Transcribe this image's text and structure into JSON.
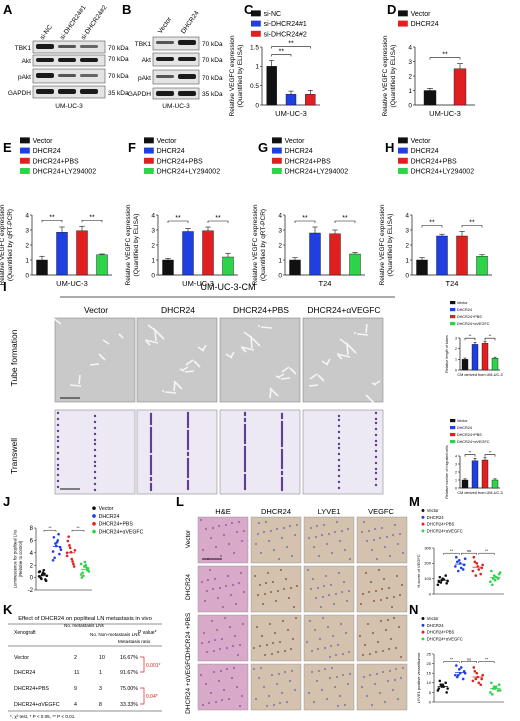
{
  "panels": {
    "A": {
      "letter": "A",
      "lanes": [
        "si-NC",
        "si-DHCR24#1",
        "si-DHCR24#2"
      ],
      "proteins": [
        "TBK1",
        "Akt",
        "pAkt",
        "GAPDH"
      ],
      "markers": [
        "70 kDa",
        "70 kDa",
        "70 kDa",
        "35 kDa"
      ],
      "cell_line": "UM-UC-3"
    },
    "B": {
      "letter": "B",
      "lanes": [
        "Vector",
        "DHCR24"
      ],
      "proteins": [
        "TBK1",
        "Akt",
        "pAkt",
        "GAPDH"
      ],
      "markers": [
        "70 kDa",
        "70 kDa",
        "70 kDa",
        "35 kDa"
      ],
      "cell_line": "UM-UC-3"
    },
    "I": {
      "letter": "I",
      "header": "UM-UC-3-CM",
      "columns": [
        "Vector",
        "DHCR24",
        "DHCR24+PBS",
        "DHCR24+αVEGFC"
      ],
      "rows": [
        "Tube formation",
        "Transwell"
      ]
    },
    "J": {
      "letter": "J"
    },
    "K": {
      "letter": "K",
      "title": "Effect of DHCR24 on popliteal LN metastasis in vivo",
      "headers": [
        "Xenograft",
        "No. metastasis LNs",
        "No. Non-metastasis LNs",
        "Metastasis ratio",
        "P value*"
      ],
      "rows": [
        [
          "Vector",
          "2",
          "10",
          "16.67%"
        ],
        [
          "DHCR24",
          "11",
          "1",
          "91.67%"
        ],
        [
          "DHCR24+PBS",
          "9",
          "3",
          "75.00%"
        ],
        [
          "DHCR24+αVEGFC",
          "4",
          "8",
          "33.33%"
        ]
      ],
      "pvalues": [
        "0.001*",
        "0.04*"
      ],
      "footnote": "*, χ² test, * P < 0.05, ** P < 0.01."
    },
    "L": {
      "letter": "L",
      "columns": [
        "H&E",
        "DHCR24",
        "LYVE1",
        "VEGFC"
      ],
      "rows": [
        "Vector",
        "DHCR24",
        "DHCR24 +PBS",
        "DHCR24 +αVEGFC"
      ]
    },
    "M": {
      "letter": "M"
    },
    "N": {
      "letter": "N"
    }
  },
  "colors": {
    "vector": "#111111",
    "dhcr24": "#1f3fe0",
    "pbs": "#e02020",
    "ly": "#2dd44a",
    "si1": "#1f3fe0",
    "si2": "#e02020",
    "tube_bg": "#c9c9c9",
    "transwell_bg": "#ece8f4",
    "he": "#d9a9c9",
    "ihc": "#d4c2ae"
  },
  "chart_data": [
    {
      "panel": "C",
      "type": "bar",
      "categories": [
        "si-NC",
        "si-DHCR24#1",
        "si-DHCR24#2"
      ],
      "values": [
        1.0,
        0.28,
        0.28
      ],
      "errors": [
        0.15,
        0.08,
        0.1
      ],
      "legend": [
        "si-NC",
        "si-DHCR24#1",
        "si-DHCR24#2"
      ],
      "ylabel": "Relative VEGFC expression (Quantified by ELISA)",
      "xlabel": "UM-UC-3",
      "ylim": [
        0,
        1.5
      ],
      "yticks": [
        0,
        0.5,
        1,
        1.5
      ],
      "sig": [
        {
          "from": 0,
          "to": 1,
          "label": "**"
        },
        {
          "from": 0,
          "to": 2,
          "label": "**"
        }
      ]
    },
    {
      "panel": "D",
      "type": "bar",
      "categories": [
        "Vector",
        "DHCR24"
      ],
      "values": [
        1.0,
        2.5
      ],
      "errors": [
        0.15,
        0.35
      ],
      "legend": [
        "Vector",
        "DHCR24"
      ],
      "ylabel": "Relative VEGFC expression (Quantified by ELISA)",
      "xlabel": "UM-UC-3",
      "ylim": [
        0,
        4
      ],
      "yticks": [
        0,
        1,
        2,
        3,
        4
      ],
      "sig": [
        {
          "from": 0,
          "to": 1,
          "label": "**"
        }
      ]
    },
    {
      "panel": "E",
      "type": "bar",
      "categories": [
        "Vector",
        "DHCR24",
        "DHCR24+PBS",
        "DHCR24+LY294002"
      ],
      "values": [
        1.0,
        2.85,
        2.95,
        1.35
      ],
      "errors": [
        0.25,
        0.35,
        0.3,
        0.05
      ],
      "legend": [
        "Vector",
        "DHCR24",
        "DHCR24+PBS",
        "DHCR24+LY294002"
      ],
      "ylabel": "Relative VEGFC expression (Quantified by qRT-PCR)",
      "xlabel": "UM-UC-3",
      "ylim": [
        0,
        4
      ],
      "yticks": [
        0,
        1,
        2,
        3,
        4
      ],
      "sig": [
        {
          "from": 0,
          "to": 1,
          "label": "**"
        },
        {
          "from": 2,
          "to": 3,
          "label": "**"
        }
      ]
    },
    {
      "panel": "F",
      "type": "bar",
      "categories": [
        "Vector",
        "DHCR24",
        "DHCR24+PBS",
        "DHCR24+LY294002"
      ],
      "values": [
        1.0,
        2.9,
        2.95,
        1.2
      ],
      "errors": [
        0.1,
        0.2,
        0.25,
        0.25
      ],
      "legend": [
        "Vector",
        "DHCR24",
        "DHCR24+PBS",
        "DHCR24+LY294002"
      ],
      "ylabel": "Relative VEGFC expression (Quantified by ELISA)",
      "xlabel": "UM-UC-3",
      "ylim": [
        0,
        4
      ],
      "yticks": [
        0,
        1,
        2,
        3,
        4
      ],
      "sig": [
        {
          "from": 0,
          "to": 1,
          "label": "**"
        },
        {
          "from": 2,
          "to": 3,
          "label": "**"
        }
      ]
    },
    {
      "panel": "G",
      "type": "bar",
      "categories": [
        "Vector",
        "DHCR24",
        "DHCR24+PBS",
        "DHCR24+LY294002"
      ],
      "values": [
        1.0,
        2.8,
        2.75,
        1.4
      ],
      "errors": [
        0.15,
        0.4,
        0.25,
        0.1
      ],
      "legend": [
        "Vector",
        "DHCR24",
        "DHCR24+PBS",
        "DHCR24+LY294002"
      ],
      "ylabel": "Relative VEGFC expression (Quantified by qRT-PCR)",
      "xlabel": "T24",
      "ylim": [
        0,
        4
      ],
      "yticks": [
        0,
        1,
        2,
        3,
        4
      ],
      "sig": [
        {
          "from": 0,
          "to": 1,
          "label": "**"
        },
        {
          "from": 2,
          "to": 3,
          "label": "**"
        }
      ]
    },
    {
      "panel": "H",
      "type": "bar",
      "categories": [
        "Vector",
        "DHCR24",
        "DHCR24+PBS",
        "DHCR24+LY294002"
      ],
      "values": [
        1.0,
        2.6,
        2.6,
        1.25
      ],
      "errors": [
        0.15,
        0.12,
        0.3,
        0.1
      ],
      "legend": [
        "Vector",
        "DHCR24",
        "DHCR24+PBS",
        "DHCR24+LY294002"
      ],
      "ylabel": "Relative VEGFC expression (Quantified by ELISA)",
      "xlabel": "T24",
      "ylim": [
        0,
        4
      ],
      "yticks": [
        0,
        1,
        2,
        3,
        4
      ],
      "sig": [
        {
          "from": 0,
          "to": 1,
          "label": "**"
        },
        {
          "from": 2,
          "to": 3,
          "label": "**"
        }
      ]
    },
    {
      "panel": "I-tube",
      "type": "bar",
      "categories": [
        "Vector",
        "DHCR24",
        "DHCR24+PBS",
        "DHCR24+αVEGFC"
      ],
      "values": [
        1.0,
        2.4,
        2.5,
        1.1
      ],
      "errors": [
        0.12,
        0.2,
        0.2,
        0.1
      ],
      "legend": [
        "Vector",
        "DHCR24",
        "DHCR24+PBS",
        "DHCR24+αVEGFC"
      ],
      "ylabel": "Relative length of tubes",
      "xlabel": "CM derived from UM-UC-3",
      "ylim": [
        0,
        3
      ],
      "yticks": [
        0,
        1,
        2,
        3
      ],
      "sig": [
        {
          "from": 0,
          "to": 1,
          "label": "**"
        },
        {
          "from": 2,
          "to": 3,
          "label": "**"
        }
      ]
    },
    {
      "panel": "I-transwell",
      "type": "bar",
      "categories": [
        "Vector",
        "DHCR24",
        "DHCR24+PBS",
        "DHCR24+αVEGFC"
      ],
      "values": [
        1.0,
        3.4,
        3.5,
        1.0
      ],
      "errors": [
        0.15,
        0.3,
        0.3,
        0.15
      ],
      "legend": [
        "Vector",
        "DHCR24",
        "DHCR24+PBS",
        "DHCR24+αVEGFC"
      ],
      "ylabel": "Relative number of migrated cells",
      "xlabel": "CM derived from UM-UC-3",
      "ylim": [
        0,
        4
      ],
      "yticks": [
        0,
        1,
        2,
        3,
        4
      ],
      "sig": [
        {
          "from": 0,
          "to": 1,
          "label": "**"
        },
        {
          "from": 2,
          "to": 3,
          "label": "**"
        }
      ]
    },
    {
      "panel": "J",
      "type": "scatter",
      "categories": [
        "Vector",
        "DHCR24",
        "DHCR24+PBS",
        "DHCR24+αVEGFC"
      ],
      "legend": [
        "Vector",
        "DHCR24",
        "DHCR24+PBS",
        "DHCR24+αVEGFC"
      ],
      "ylabel": "Luminescence for popliteal LNs (Relative to control)",
      "ylim": [
        -2,
        8
      ],
      "yticks": [
        -2,
        0,
        2,
        4,
        6,
        8
      ],
      "series": [
        {
          "values": [
            0.2,
            0.5,
            -0.3,
            1.0,
            0.8,
            -0.5,
            0.0,
            1.2,
            0.3,
            -0.2,
            0.6,
            0.9
          ]
        },
        {
          "values": [
            4.2,
            5.1,
            3.8,
            6.5,
            5.7,
            4.9,
            3.2,
            6.0,
            4.5,
            5.5,
            7.0,
            2.8
          ]
        },
        {
          "values": [
            3.5,
            4.8,
            2.2,
            5.9,
            4.1,
            1.8,
            6.6,
            3.0,
            4.4,
            5.2,
            2.6,
            4.0
          ]
        },
        {
          "values": [
            0.5,
            1.8,
            1.2,
            0.0,
            2.5,
            1.5,
            0.8,
            2.0,
            1.0,
            0.3,
            1.6,
            2.2
          ]
        }
      ],
      "means": [
        0.3,
        5.0,
        4.0,
        1.3
      ],
      "sig": [
        {
          "from": 0,
          "to": 1,
          "label": "**"
        },
        {
          "from": 2,
          "to": 3,
          "label": "**"
        }
      ]
    },
    {
      "panel": "M",
      "type": "scatter",
      "categories": [
        "Vector",
        "DHCR24",
        "DHCR24+PBS",
        "DHCR24+αVEGFC"
      ],
      "legend": [
        "Vector",
        "DHCR24",
        "DHCR24+PBS",
        "DHCR24+αVEGFC"
      ],
      "ylabel": "H-score of VEGFC",
      "ylim": [
        0,
        300
      ],
      "yticks": [
        0,
        100,
        200,
        300
      ],
      "series": [
        {
          "values": [
            60,
            90,
            120,
            80,
            100,
            70,
            110,
            95,
            85,
            75
          ]
        },
        {
          "values": [
            180,
            220,
            160,
            240,
            200,
            190,
            210,
            170,
            230,
            150
          ]
        },
        {
          "values": [
            150,
            200,
            130,
            240,
            180,
            170,
            210,
            160,
            190,
            120
          ]
        },
        {
          "values": [
            80,
            120,
            100,
            150,
            90,
            130,
            60,
            110,
            140,
            100
          ]
        }
      ],
      "means": [
        90,
        195,
        175,
        108
      ],
      "sig": [
        {
          "from": 0,
          "to": 1,
          "label": "**"
        },
        {
          "from": 1,
          "to": 2,
          "label": "ns"
        },
        {
          "from": 2,
          "to": 3,
          "label": "**"
        }
      ]
    },
    {
      "panel": "N",
      "type": "scatter",
      "categories": [
        "Vector",
        "DHCR24",
        "DHCR24+PBS",
        "DHCR24+αVEGFC"
      ],
      "legend": [
        "Vector",
        "DHCR24",
        "DHCR24+PBS",
        "DHCR24+αVEGFC"
      ],
      "ylabel": "LYVE1 positive vessel/tumor",
      "ylim": [
        0,
        25
      ],
      "yticks": [
        0,
        5,
        10,
        15,
        20,
        25
      ],
      "series": [
        {
          "values": [
            6,
            8,
            10,
            7,
            9,
            5,
            11,
            8,
            7,
            9
          ]
        },
        {
          "values": [
            14,
            17,
            12,
            19,
            15,
            16,
            13,
            18,
            15,
            14
          ]
        },
        {
          "values": [
            11,
            15,
            9,
            18,
            13,
            12,
            16,
            10,
            14,
            12
          ]
        },
        {
          "values": [
            5,
            8,
            6,
            10,
            7,
            9,
            4,
            8,
            6,
            7
          ]
        }
      ],
      "means": [
        8,
        15.3,
        13,
        7
      ],
      "sig": [
        {
          "from": 0,
          "to": 1,
          "label": "**"
        },
        {
          "from": 1,
          "to": 2,
          "label": "ns"
        },
        {
          "from": 2,
          "to": 3,
          "label": "**"
        }
      ]
    }
  ]
}
